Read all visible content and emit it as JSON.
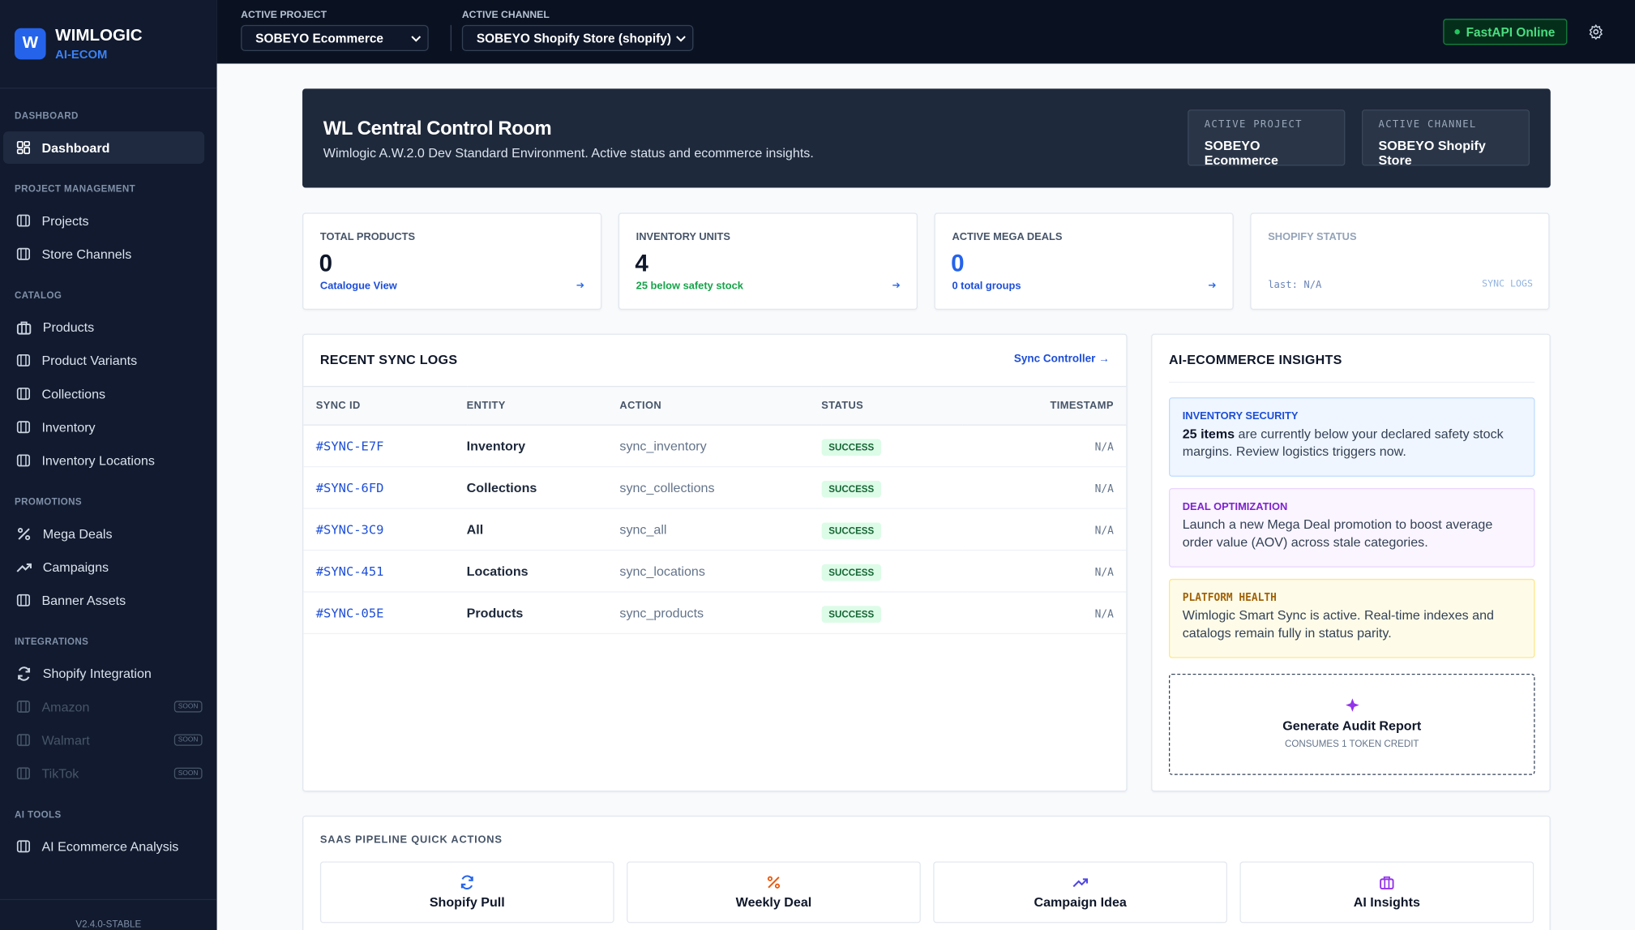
{
  "sidebar": {
    "logo": "W",
    "brand": "WIMLOGIC",
    "subbrand": "AI-ECOM",
    "sections": [
      {
        "title": "DASHBOARD",
        "items": [
          {
            "label": "Dashboard"
          }
        ]
      },
      {
        "title": "PROJECT MANAGEMENT",
        "items": [
          {
            "label": "Projects"
          },
          {
            "label": "Store Channels"
          }
        ]
      },
      {
        "title": "CATALOG",
        "items": [
          {
            "label": "Products"
          },
          {
            "label": "Product Variants"
          },
          {
            "label": "Collections"
          },
          {
            "label": "Inventory"
          },
          {
            "label": "Inventory Locations"
          }
        ]
      },
      {
        "title": "PROMOTIONS",
        "items": [
          {
            "label": "Mega Deals"
          },
          {
            "label": "Campaigns"
          },
          {
            "label": "Banner Assets"
          }
        ]
      },
      {
        "title": "INTEGRATIONS",
        "items": [
          {
            "label": "Shopify Integration"
          },
          {
            "label": "Amazon",
            "badge": "SOON"
          },
          {
            "label": "Walmart",
            "badge": "SOON"
          },
          {
            "label": "TikTok",
            "badge": "SOON"
          }
        ]
      },
      {
        "title": "AI TOOLS",
        "items": [
          {
            "label": "AI Ecommerce Analysis"
          }
        ]
      }
    ],
    "version": "V2.4.0-STABLE"
  },
  "topbar": {
    "project_label": "ACTIVE PROJECT",
    "project": "SOBEYO Ecommerce",
    "channel_label": "ACTIVE CHANNEL",
    "channel": "SOBEYO Shopify Store (shopify)",
    "status": "FastAPI Online"
  },
  "hero": {
    "title": "WL Central Control Room",
    "subtitle": "Wimlogic A.W.2.0 Dev Standard Environment. Active status and ecommerce insights.",
    "badges": [
      {
        "label": "ACTIVE PROJECT",
        "value": "SOBEYO Ecommerce"
      },
      {
        "label": "ACTIVE CHANNEL",
        "value": "SOBEYO Shopify Store"
      }
    ]
  },
  "stats": [
    {
      "label": "TOTAL PRODUCTS",
      "value": 0,
      "note": "Catalogue View"
    },
    {
      "label": "INVENTORY UNITS",
      "value": 4,
      "note": "25 below safety stock"
    },
    {
      "label": "ACTIVE MEGA DEALS",
      "value": 0,
      "note": "0 total groups"
    },
    {
      "label": "SHOPIFY STATUS",
      "note": "last: N/A",
      "link": "SYNC LOGS"
    }
  ],
  "sync_logs": {
    "title": "RECENT SYNC LOGS",
    "link": "Sync Controller →",
    "columns": [
      "SYNC ID",
      "ENTITY",
      "ACTION",
      "STATUS",
      "TIMESTAMP"
    ],
    "rows": [
      [
        "#SYNC-E7F",
        "Inventory",
        "sync_inventory",
        "SUCCESS",
        "N/A"
      ],
      [
        "#SYNC-6FD",
        "Collections",
        "sync_collections",
        "SUCCESS",
        "N/A"
      ],
      [
        "#SYNC-3C9",
        "All",
        "sync_all",
        "SUCCESS",
        "N/A"
      ],
      [
        "#SYNC-451",
        "Locations",
        "sync_locations",
        "SUCCESS",
        "N/A"
      ],
      [
        "#SYNC-05E",
        "Products",
        "sync_products",
        "SUCCESS",
        "N/A"
      ]
    ]
  },
  "insights": {
    "title": "AI-ECOMMERCE INSIGHTS",
    "cards": [
      {
        "title": "INVENTORY SECURITY",
        "emphasis": "25 items",
        "text": "are currently below your declared safety stock margins. Review logistics triggers now."
      },
      {
        "title": "DEAL OPTIMIZATION",
        "text": "Launch a new Mega Deal promotion to boost average order value (AOV) across stale categories."
      },
      {
        "title": "PLATFORM HEALTH",
        "text": "Wimlogic Smart Sync is active. Real-time indexes and catalogs remain fully in status parity."
      }
    ],
    "audit": {
      "title": "Generate Audit Report",
      "note": "CONSUMES 1 TOKEN CREDIT"
    }
  },
  "quick_actions": {
    "title": "SAAS PIPELINE QUICK ACTIONS",
    "actions": [
      "Shopify Pull",
      "Weekly Deal",
      "Campaign Idea",
      "AI Insights"
    ]
  }
}
